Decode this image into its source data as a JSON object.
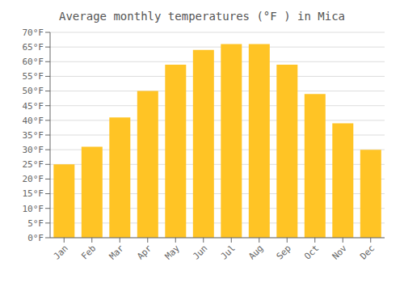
{
  "chart_data": {
    "type": "bar",
    "title": "Average monthly temperatures (°F ) in Mica",
    "categories": [
      "Jan",
      "Feb",
      "Mar",
      "Apr",
      "May",
      "Jun",
      "Jul",
      "Aug",
      "Sep",
      "Oct",
      "Nov",
      "Dec"
    ],
    "values": [
      25,
      31,
      41,
      50,
      59,
      64,
      66,
      66,
      59,
      49,
      39,
      30
    ],
    "color": "#FFC425",
    "ylim": [
      0,
      70
    ],
    "yticks": [
      {
        "value": 0,
        "label": "0°F"
      },
      {
        "value": 5,
        "label": "5°F"
      },
      {
        "value": 10,
        "label": "10°F"
      },
      {
        "value": 15,
        "label": "15°F"
      },
      {
        "value": 20,
        "label": "20°F"
      },
      {
        "value": 25,
        "label": "25°F"
      },
      {
        "value": 30,
        "label": "30°F"
      },
      {
        "value": 35,
        "label": "35°F"
      },
      {
        "value": 40,
        "label": "40°F"
      },
      {
        "value": 45,
        "label": "45°F"
      },
      {
        "value": 50,
        "label": "50°F"
      },
      {
        "value": 55,
        "label": "55°F"
      },
      {
        "value": 60,
        "label": "60°F"
      },
      {
        "value": 65,
        "label": "65°F"
      },
      {
        "value": 70,
        "label": "70°F"
      }
    ],
    "grid": true
  }
}
